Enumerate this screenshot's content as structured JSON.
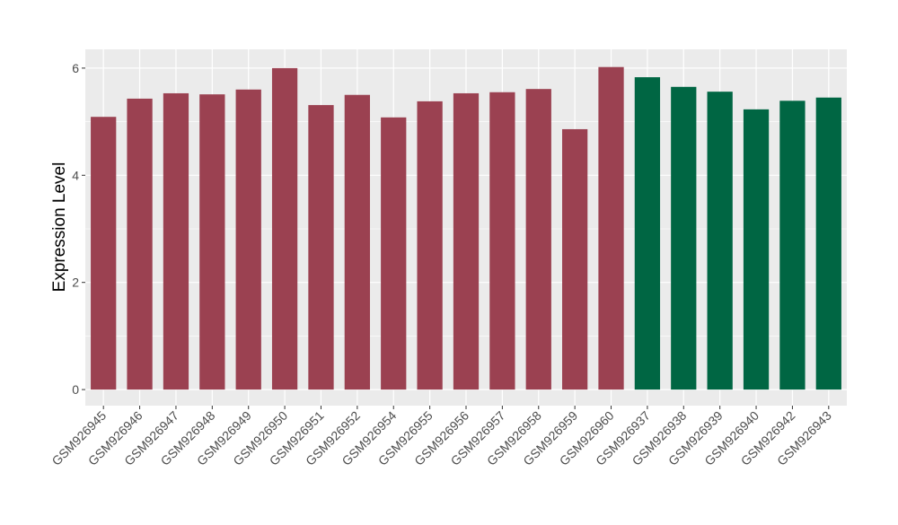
{
  "chart_data": {
    "type": "bar",
    "title": "",
    "xlabel": "",
    "ylabel": "Expression Level",
    "ylim": [
      -0.3,
      6.35
    ],
    "yticks": [
      0,
      2,
      4,
      6
    ],
    "grid": true,
    "legend": "none",
    "colors": {
      "group1": "#9B4151",
      "group2": "#006643",
      "panel": "#EBEBEB",
      "grid": "#FFFFFF"
    },
    "categories": [
      "GSM926945",
      "GSM926946",
      "GSM926947",
      "GSM926948",
      "GSM926949",
      "GSM926950",
      "GSM926951",
      "GSM926952",
      "GSM926954",
      "GSM926955",
      "GSM926956",
      "GSM926957",
      "GSM926958",
      "GSM926959",
      "GSM926960",
      "GSM926937",
      "GSM926938",
      "GSM926939",
      "GSM926940",
      "GSM926942",
      "GSM926943"
    ],
    "values": [
      5.09,
      5.43,
      5.53,
      5.51,
      5.6,
      6.0,
      5.31,
      5.5,
      5.08,
      5.38,
      5.53,
      5.55,
      5.61,
      4.86,
      6.02,
      5.83,
      5.65,
      5.56,
      5.23,
      5.39,
      5.45
    ],
    "groups": [
      1,
      1,
      1,
      1,
      1,
      1,
      1,
      1,
      1,
      1,
      1,
      1,
      1,
      1,
      1,
      2,
      2,
      2,
      2,
      2,
      2
    ]
  }
}
